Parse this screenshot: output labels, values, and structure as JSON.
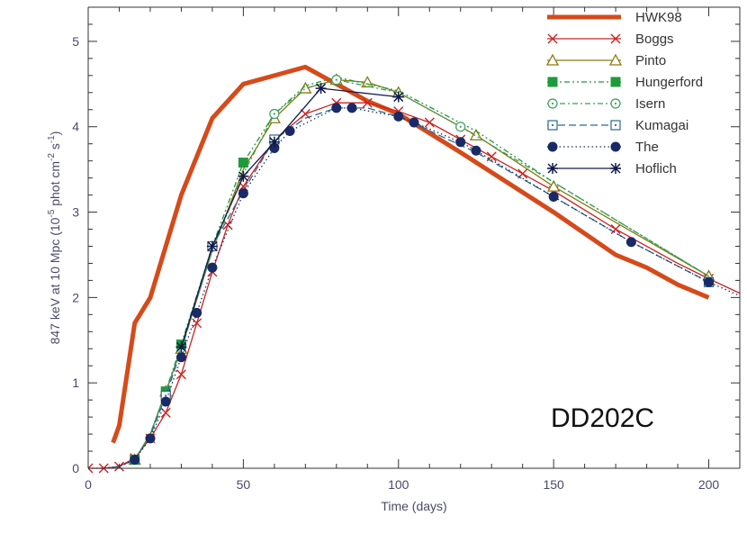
{
  "chart_data": {
    "type": "line",
    "title": "",
    "xlabel": "Time (days)",
    "ylabel_main": "847 keV at 10 Mpc (10",
    "ylabel_exp1": "-5",
    "ylabel_mid": " phot cm",
    "ylabel_exp2": "-2",
    "ylabel_mid2": " s",
    "ylabel_exp3": "-1",
    "ylabel_end": ")",
    "annotation": "DD202C",
    "xlim": [
      0,
      210
    ],
    "ylim": [
      0,
      5.4
    ],
    "xticks": [
      0,
      50,
      100,
      150,
      200
    ],
    "xtick_labels": [
      "0",
      "50",
      "100",
      "150",
      "200"
    ],
    "yticks": [
      0,
      1,
      2,
      3,
      4,
      5
    ],
    "ytick_labels": [
      "0",
      "1",
      "2",
      "3",
      "4",
      "5"
    ],
    "legend_position": "top-right",
    "series": [
      {
        "name": "HWK98",
        "color": "#d64a1a",
        "dash": "solid",
        "marker": "none",
        "width": 5,
        "x": [
          8,
          10,
          15,
          20,
          25,
          30,
          40,
          50,
          60,
          70,
          80,
          90,
          100,
          120,
          150,
          170,
          180,
          190,
          200
        ],
        "y": [
          0.3,
          0.5,
          1.7,
          2.0,
          2.6,
          3.2,
          4.1,
          4.5,
          4.6,
          4.7,
          4.5,
          4.3,
          4.15,
          3.7,
          3.0,
          2.5,
          2.35,
          2.15,
          2.0
        ],
        "mx": [],
        "my": []
      },
      {
        "name": "Boggs",
        "color": "#cc2222",
        "dash": "solid",
        "marker": "x",
        "width": 1.3,
        "x": [
          0,
          5,
          10,
          15,
          20,
          25,
          30,
          35,
          40,
          45,
          50,
          60,
          70,
          80,
          90,
          100,
          110,
          120,
          130,
          140,
          150,
          170,
          190,
          200,
          210
        ],
        "y": [
          0,
          0,
          0.02,
          0.12,
          0.35,
          0.65,
          1.1,
          1.7,
          2.3,
          2.85,
          3.3,
          3.85,
          4.15,
          4.28,
          4.28,
          4.18,
          4.05,
          3.85,
          3.65,
          3.45,
          3.25,
          2.8,
          2.4,
          2.22,
          2.05
        ],
        "mx": [
          0,
          5,
          10,
          15,
          20,
          25,
          30,
          35,
          40,
          45,
          50,
          60,
          70,
          80,
          90,
          100,
          110,
          120,
          130,
          140,
          150,
          170,
          200
        ],
        "my": [
          0,
          0,
          0.02,
          0.12,
          0.35,
          0.65,
          1.1,
          1.7,
          2.3,
          2.85,
          3.3,
          3.85,
          4.15,
          4.28,
          4.28,
          4.18,
          4.05,
          3.85,
          3.65,
          3.45,
          3.25,
          2.8,
          2.22
        ]
      },
      {
        "name": "Pinto",
        "color": "#8a7a10",
        "dash": "solid",
        "marker": "triangle",
        "width": 1.3,
        "x": [
          15,
          20,
          25,
          30,
          40,
          50,
          60,
          70,
          80,
          90,
          100,
          125,
          150,
          200
        ],
        "y": [
          0.1,
          0.4,
          0.9,
          1.4,
          2.55,
          3.5,
          4.1,
          4.45,
          4.55,
          4.52,
          4.4,
          3.9,
          3.3,
          2.25
        ],
        "mx": [
          15,
          25,
          30,
          60,
          70,
          80,
          90,
          100,
          125,
          150,
          200
        ],
        "my": [
          0.1,
          0.9,
          1.4,
          4.1,
          4.45,
          4.55,
          4.52,
          4.4,
          3.9,
          3.3,
          2.25
        ]
      },
      {
        "name": "Hungerford",
        "color": "#1f9a3a",
        "dash": "6,3,2,3,2,3",
        "marker": "square-filled",
        "width": 1.3,
        "x": [
          15,
          20,
          25,
          30,
          40,
          50,
          60,
          70,
          80,
          100,
          125,
          150,
          200
        ],
        "y": [
          0.1,
          0.4,
          0.9,
          1.45,
          2.6,
          3.58,
          4.15,
          4.48,
          4.58,
          4.42,
          3.95,
          3.35,
          2.25
        ],
        "mx": [
          15,
          25,
          30,
          50
        ],
        "my": [
          0.1,
          0.9,
          1.45,
          3.58
        ]
      },
      {
        "name": "Isern",
        "color": "#3aa060",
        "dash": "6,3,2,3",
        "marker": "circle-dot",
        "width": 1.3,
        "x": [
          15,
          20,
          25,
          30,
          40,
          50,
          60,
          70,
          80,
          100,
          120,
          150,
          200
        ],
        "y": [
          0.1,
          0.4,
          0.88,
          1.42,
          2.55,
          3.45,
          4.15,
          4.45,
          4.55,
          4.4,
          4.0,
          3.35,
          2.25
        ],
        "mx": [
          60,
          80,
          120
        ],
        "my": [
          4.15,
          4.55,
          4.0
        ]
      },
      {
        "name": "Kumagai",
        "color": "#2a6a8a",
        "dash": "8,4",
        "marker": "square-dot",
        "width": 1.3,
        "x": [
          5,
          10,
          15,
          20,
          25,
          30,
          40,
          50,
          60,
          70,
          80,
          90,
          100,
          125,
          150,
          175,
          200
        ],
        "y": [
          0,
          0.02,
          0.1,
          0.38,
          0.85,
          1.38,
          2.6,
          3.25,
          3.85,
          4.1,
          4.22,
          4.22,
          4.12,
          3.7,
          3.18,
          2.65,
          2.18
        ],
        "mx": [
          25,
          40,
          60,
          200
        ],
        "my": [
          0.85,
          2.6,
          3.85,
          2.18
        ]
      },
      {
        "name": "The",
        "color": "#1a2a66",
        "dash": "1.5,3",
        "marker": "circle-filled",
        "width": 1.3,
        "x": [
          0,
          5,
          10,
          15,
          20,
          25,
          30,
          35,
          40,
          50,
          60,
          65,
          80,
          85,
          100,
          105,
          120,
          125,
          150,
          175,
          200,
          210
        ],
        "y": [
          0,
          0,
          0.02,
          0.1,
          0.35,
          0.78,
          1.3,
          1.82,
          2.35,
          3.22,
          3.75,
          3.95,
          4.22,
          4.22,
          4.12,
          4.05,
          3.82,
          3.72,
          3.18,
          2.65,
          2.18,
          2.02
        ],
        "mx": [
          15,
          20,
          25,
          30,
          35,
          40,
          50,
          60,
          65,
          80,
          85,
          100,
          105,
          120,
          125,
          150,
          175,
          200
        ],
        "my": [
          0.1,
          0.35,
          0.78,
          1.3,
          1.82,
          2.35,
          3.22,
          3.75,
          3.95,
          4.22,
          4.22,
          4.12,
          4.05,
          3.82,
          3.72,
          3.18,
          2.65,
          2.18
        ]
      },
      {
        "name": "Hoflich",
        "color": "#141a4a",
        "dash": "solid",
        "marker": "asterisk",
        "width": 1.3,
        "x": [
          30,
          40,
          50,
          60,
          75,
          100
        ],
        "y": [
          1.42,
          2.6,
          3.42,
          3.82,
          4.45,
          4.35
        ],
        "mx": [
          30,
          40,
          50,
          60,
          75,
          100
        ],
        "my": [
          1.42,
          2.6,
          3.42,
          3.82,
          4.45,
          4.35
        ]
      }
    ]
  }
}
